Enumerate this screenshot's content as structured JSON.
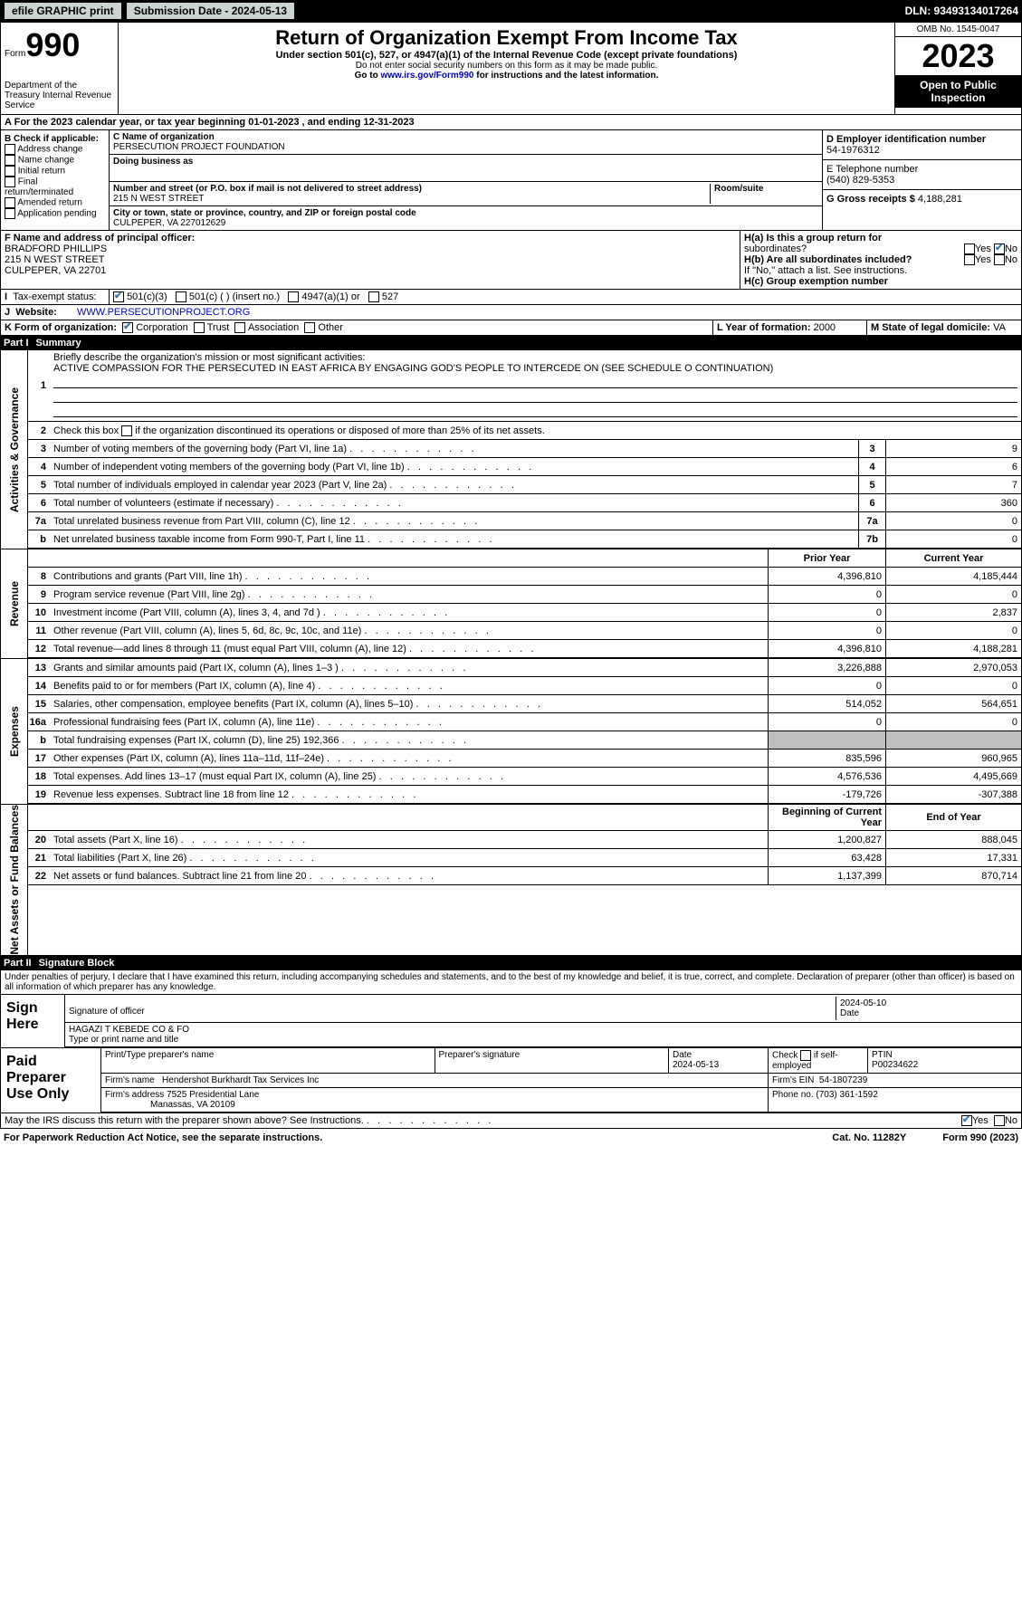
{
  "top": {
    "efile": "efile GRAPHIC print",
    "submission": "Submission Date - 2024-05-13",
    "dln": "DLN: 93493134017264"
  },
  "hdr": {
    "form": "Form",
    "num": "990",
    "dept": "Department of the Treasury Internal Revenue Service",
    "title": "Return of Organization Exempt From Income Tax",
    "sub": "Under section 501(c), 527, or 4947(a)(1) of the Internal Revenue Code (except private foundations)",
    "note1": "Do not enter social security numbers on this form as it may be made public.",
    "note2": "Go to www.irs.gov/Form990 for instructions and the latest information.",
    "goto_pre": "Go to ",
    "goto_link": "www.irs.gov/Form990",
    "goto_post": " for instructions and the latest information.",
    "omb": "OMB No. 1545-0047",
    "year": "2023",
    "pub": "Open to Public Inspection"
  },
  "a": {
    "text": "For the 2023 calendar year, or tax year beginning 01-01-2023   , and ending 12-31-2023"
  },
  "b": {
    "label": "B Check if applicable:",
    "opts": [
      "Address change",
      "Name change",
      "Initial return",
      "Final return/terminated",
      "Amended return",
      "Application pending"
    ]
  },
  "c": {
    "name_lbl": "C Name of organization",
    "name": "PERSECUTION PROJECT FOUNDATION",
    "dba_lbl": "Doing business as",
    "dba": "",
    "street_lbl": "Number and street (or P.O. box if mail is not delivered to street address)",
    "room_lbl": "Room/suite",
    "street": "215 N WEST STREET",
    "city_lbl": "City or town, state or province, country, and ZIP or foreign postal code",
    "city": "CULPEPER, VA  227012629"
  },
  "d": {
    "lbl": "D Employer identification number",
    "val": "54-1976312"
  },
  "e": {
    "lbl": "E Telephone number",
    "val": "(540) 829-5353"
  },
  "g": {
    "lbl": "G Gross receipts $",
    "val": "4,188,281"
  },
  "f": {
    "lbl": "F  Name and address of principal officer:",
    "l1": "BRADFORD PHILLIPS",
    "l2": "215 N WEST STREET",
    "l3": "CULPEPER, VA  22701"
  },
  "h": {
    "a": "H(a)  Is this a group return for",
    "a2": "subordinates?",
    "b": "H(b)  Are all subordinates included?",
    "bnote": "If \"No,\" attach a list. See instructions.",
    "c": "H(c)  Group exemption number"
  },
  "i": {
    "lbl": "Tax-exempt status:",
    "o1": "501(c)(3)",
    "o2": "501(c) (  ) (insert no.)",
    "o3": "4947(a)(1) or",
    "o4": "527"
  },
  "j": {
    "lbl": "Website:",
    "val": "WWW.PERSECUTIONPROJECT.ORG"
  },
  "k": {
    "lbl": "K Form of organization:",
    "o1": "Corporation",
    "o2": "Trust",
    "o3": "Association",
    "o4": "Other"
  },
  "l": {
    "lbl": "L Year of formation:",
    "val": "2000"
  },
  "m": {
    "lbl": "M State of legal domicile:",
    "val": "VA"
  },
  "parts": {
    "p1": "Part I",
    "p1t": "Summary",
    "p2": "Part II",
    "p2t": "Signature Block"
  },
  "sides": {
    "gov": "Activities & Governance",
    "rev": "Revenue",
    "exp": "Expenses",
    "net": "Net Assets or Fund Balances"
  },
  "summary": {
    "l1": "Briefly describe the organization's mission or most significant activities:",
    "l1v": "ACTIVE COMPASSION FOR THE PERSECUTED IN EAST AFRICA BY ENGAGING GOD'S PEOPLE TO INTERCEDE ON (SEE SCHEDULE O CONTINUATION)",
    "l2": "Check this box      if the organization discontinued its operations or disposed of more than 25% of its net assets.",
    "rows": [
      {
        "n": "3",
        "d": "Number of voting members of the governing body (Part VI, line 1a)",
        "b": "3",
        "v": "9"
      },
      {
        "n": "4",
        "d": "Number of independent voting members of the governing body (Part VI, line 1b)",
        "b": "4",
        "v": "6"
      },
      {
        "n": "5",
        "d": "Total number of individuals employed in calendar year 2023 (Part V, line 2a)",
        "b": "5",
        "v": "7"
      },
      {
        "n": "6",
        "d": "Total number of volunteers (estimate if necessary)",
        "b": "6",
        "v": "360"
      },
      {
        "n": "7a",
        "d": "Total unrelated business revenue from Part VIII, column (C), line 12",
        "b": "7a",
        "v": "0"
      },
      {
        "n": "b",
        "d": "Net unrelated business taxable income from Form 990-T, Part I, line 11",
        "b": "7b",
        "v": "0"
      }
    ],
    "hdr_prior": "Prior Year",
    "hdr_curr": "Current Year",
    "rev": [
      {
        "n": "8",
        "d": "Contributions and grants (Part VIII, line 1h)",
        "p": "4,396,810",
        "c": "4,185,444"
      },
      {
        "n": "9",
        "d": "Program service revenue (Part VIII, line 2g)",
        "p": "0",
        "c": "0"
      },
      {
        "n": "10",
        "d": "Investment income (Part VIII, column (A), lines 3, 4, and 7d )",
        "p": "0",
        "c": "2,837"
      },
      {
        "n": "11",
        "d": "Other revenue (Part VIII, column (A), lines 5, 6d, 8c, 9c, 10c, and 11e)",
        "p": "0",
        "c": "0"
      },
      {
        "n": "12",
        "d": "Total revenue—add lines 8 through 11 (must equal Part VIII, column (A), line 12)",
        "p": "4,396,810",
        "c": "4,188,281"
      }
    ],
    "exp": [
      {
        "n": "13",
        "d": "Grants and similar amounts paid (Part IX, column (A), lines 1–3 )",
        "p": "3,226,888",
        "c": "2,970,053"
      },
      {
        "n": "14",
        "d": "Benefits paid to or for members (Part IX, column (A), line 4)",
        "p": "0",
        "c": "0"
      },
      {
        "n": "15",
        "d": "Salaries, other compensation, employee benefits (Part IX, column (A), lines 5–10)",
        "p": "514,052",
        "c": "564,651"
      },
      {
        "n": "16a",
        "d": "Professional fundraising fees (Part IX, column (A), line 11e)",
        "p": "0",
        "c": "0"
      },
      {
        "n": "b",
        "d": "Total fundraising expenses (Part IX, column (D), line 25) 192,366",
        "p": "",
        "c": "",
        "grey": true
      },
      {
        "n": "17",
        "d": "Other expenses (Part IX, column (A), lines 11a–11d, 11f–24e)",
        "p": "835,596",
        "c": "960,965"
      },
      {
        "n": "18",
        "d": "Total expenses. Add lines 13–17 (must equal Part IX, column (A), line 25)",
        "p": "4,576,536",
        "c": "4,495,669"
      },
      {
        "n": "19",
        "d": "Revenue less expenses. Subtract line 18 from line 12",
        "p": "-179,726",
        "c": "-307,388"
      }
    ],
    "hdr_beg": "Beginning of Current Year",
    "hdr_end": "End of Year",
    "net": [
      {
        "n": "20",
        "d": "Total assets (Part X, line 16)",
        "p": "1,200,827",
        "c": "888,045"
      },
      {
        "n": "21",
        "d": "Total liabilities (Part X, line 26)",
        "p": "63,428",
        "c": "17,331"
      },
      {
        "n": "22",
        "d": "Net assets or fund balances. Subtract line 21 from line 20",
        "p": "1,137,399",
        "c": "870,714"
      }
    ]
  },
  "sig": {
    "perj": "Under penalties of perjury, I declare that I have examined this return, including accompanying schedules and statements, and to the best of my knowledge and belief, it is true, correct, and complete. Declaration of preparer (other than officer) is based on all information of which preparer has any knowledge.",
    "sign_here": "Sign Here",
    "off_sig": "Signature of officer",
    "off_name": "HAGAZI T KEBEDE CO & FO",
    "off_title": "Type or print name and title",
    "date": "Date",
    "date_v": "2024-05-10",
    "paid": "Paid Preparer Use Only",
    "prep_name_lbl": "Print/Type preparer's name",
    "prep_sig_lbl": "Preparer's signature",
    "prep_date": "2024-05-13",
    "check_se": "Check       if self-employed",
    "ptin_lbl": "PTIN",
    "ptin": "P00234622",
    "firm_name_lbl": "Firm's name",
    "firm_name": "Hendershot Burkhardt Tax Services Inc",
    "firm_ein_lbl": "Firm's EIN",
    "firm_ein": "54-1807239",
    "firm_addr_lbl": "Firm's address",
    "firm_addr1": "7525 Presidential Lane",
    "firm_addr2": "Manassas, VA  20109",
    "phone_lbl": "Phone no.",
    "phone": "(703) 361-1592",
    "discuss": "May the IRS discuss this return with the preparer shown above? See Instructions."
  },
  "footer": {
    "l": "For Paperwork Reduction Act Notice, see the separate instructions.",
    "m": "Cat. No. 11282Y",
    "r": "Form 990 (2023)"
  },
  "yn": {
    "yes": "Yes",
    "no": "No"
  }
}
